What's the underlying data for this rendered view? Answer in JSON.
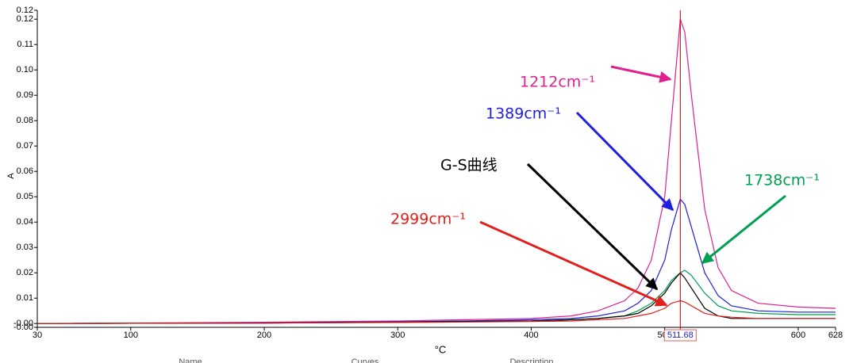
{
  "chart_data": {
    "type": "line",
    "x_label": "°C",
    "y_label": "A",
    "x": [
      30,
      100,
      200,
      300,
      350,
      400,
      430,
      450,
      470,
      480,
      490,
      500,
      505,
      511.68,
      515,
      520,
      530,
      540,
      550,
      570,
      600,
      628
    ],
    "series": [
      {
        "name": "1212cm⁻¹",
        "color": "#e0208f",
        "values": [
          0,
          0.0002,
          0.0005,
          0.001,
          0.0015,
          0.002,
          0.003,
          0.005,
          0.009,
          0.014,
          0.025,
          0.05,
          0.08,
          0.12,
          0.115,
          0.09,
          0.045,
          0.022,
          0.013,
          0.008,
          0.0065,
          0.006
        ]
      },
      {
        "name": "1389cm⁻¹",
        "color": "#1f1fe0",
        "values": [
          0,
          0.0001,
          0.0003,
          0.0007,
          0.001,
          0.0015,
          0.002,
          0.003,
          0.005,
          0.008,
          0.013,
          0.025,
          0.037,
          0.049,
          0.047,
          0.038,
          0.02,
          0.011,
          0.007,
          0.005,
          0.0045,
          0.0045
        ]
      },
      {
        "name": "1738cm⁻¹",
        "color": "#00a050",
        "values": [
          0,
          0.0001,
          0.0002,
          0.0005,
          0.0008,
          0.001,
          0.0015,
          0.002,
          0.003,
          0.005,
          0.008,
          0.013,
          0.017,
          0.02,
          0.021,
          0.019,
          0.012,
          0.007,
          0.005,
          0.004,
          0.0035,
          0.0035
        ]
      },
      {
        "name": "G-S曲线",
        "color": "#000000",
        "values": [
          0,
          0.0001,
          0.0002,
          0.0005,
          0.0008,
          0.001,
          0.0015,
          0.002,
          0.003,
          0.004,
          0.007,
          0.012,
          0.016,
          0.02,
          0.018,
          0.014,
          0.006,
          0.003,
          0.002,
          0.002,
          0.002,
          0.002
        ]
      },
      {
        "name": "2999cm⁻¹",
        "color": "#e0201c",
        "values": [
          0,
          0.0001,
          0.0002,
          0.0004,
          0.0006,
          0.0008,
          0.001,
          0.0015,
          0.002,
          0.003,
          0.004,
          0.006,
          0.008,
          0.009,
          0.0085,
          0.007,
          0.004,
          0.003,
          0.0025,
          0.002,
          0.002,
          0.002
        ]
      }
    ],
    "xlim": [
      30,
      628
    ],
    "xticks": [
      30,
      100,
      200,
      300,
      400,
      500,
      600,
      628
    ],
    "ylim": [
      -0.0015,
      0.1235
    ],
    "yticks": [
      {
        "value": -0.0015,
        "label": "-0.00"
      },
      {
        "value": 0,
        "label": "-0.00"
      },
      0.01,
      0.02,
      0.03,
      0.04,
      0.05,
      0.06,
      0.07,
      0.08,
      0.09,
      {
        "value": 0.1,
        "label": "0.10"
      },
      0.11,
      0.12,
      {
        "value": 0.1235,
        "label": "0.12"
      }
    ],
    "cursor_x": 511.68,
    "table_headers": [
      "Name",
      "Curves",
      "Description"
    ]
  }
}
